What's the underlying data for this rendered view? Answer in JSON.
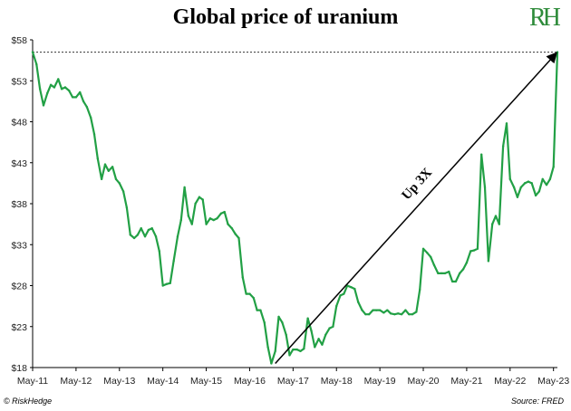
{
  "title": "Global price of uranium",
  "logo": {
    "text": "RH",
    "color": "#2e8b3a"
  },
  "footer": {
    "left": "© RiskHedge",
    "right": "Source: FRED"
  },
  "colors": {
    "line": "#22a045",
    "arrow": "#000000",
    "reference": "#333333"
  },
  "chart_data": {
    "type": "line",
    "title": "Global price of uranium",
    "xlabel": "",
    "ylabel": "",
    "yticks": [
      "$18",
      "$23",
      "$28",
      "$33",
      "$38",
      "$43",
      "$48",
      "$53",
      "$58"
    ],
    "ylim": [
      18,
      58
    ],
    "xticks": [
      "May-11",
      "May-12",
      "May-13",
      "May-14",
      "May-15",
      "May-16",
      "May-17",
      "May-18",
      "May-19",
      "May-20",
      "May-21",
      "May-22",
      "May-23"
    ],
    "grid": false,
    "annotation": {
      "text": "Up 3X",
      "from": [
        2016.92,
        18.5
      ],
      "to": [
        2023.42,
        56.5
      ]
    },
    "reference_line_value": 56.5,
    "series": [
      {
        "values": [
          [
            2011.33,
            56.5
          ],
          [
            2011.42,
            55.0
          ],
          [
            2011.5,
            52.0
          ],
          [
            2011.58,
            50.0
          ],
          [
            2011.67,
            51.5
          ],
          [
            2011.75,
            52.5
          ],
          [
            2011.83,
            52.2
          ],
          [
            2011.92,
            53.2
          ],
          [
            2012.0,
            52.0
          ],
          [
            2012.08,
            52.2
          ],
          [
            2012.17,
            51.8
          ],
          [
            2012.25,
            51.0
          ],
          [
            2012.33,
            51.0
          ],
          [
            2012.42,
            51.6
          ],
          [
            2012.5,
            50.5
          ],
          [
            2012.58,
            49.8
          ],
          [
            2012.67,
            48.5
          ],
          [
            2012.75,
            46.5
          ],
          [
            2012.83,
            43.5
          ],
          [
            2012.92,
            41.0
          ],
          [
            2013.0,
            42.8
          ],
          [
            2013.08,
            42.0
          ],
          [
            2013.17,
            42.5
          ],
          [
            2013.25,
            41.0
          ],
          [
            2013.33,
            40.5
          ],
          [
            2013.42,
            39.5
          ],
          [
            2013.5,
            37.5
          ],
          [
            2013.58,
            34.2
          ],
          [
            2013.67,
            33.8
          ],
          [
            2013.75,
            34.2
          ],
          [
            2013.83,
            35.0
          ],
          [
            2013.92,
            34.0
          ],
          [
            2014.0,
            34.8
          ],
          [
            2014.08,
            35.0
          ],
          [
            2014.17,
            34.0
          ],
          [
            2014.25,
            32.2
          ],
          [
            2014.33,
            28.0
          ],
          [
            2014.42,
            28.2
          ],
          [
            2014.5,
            28.3
          ],
          [
            2014.58,
            31.0
          ],
          [
            2014.67,
            34.0
          ],
          [
            2014.75,
            36.0
          ],
          [
            2014.83,
            40.0
          ],
          [
            2014.92,
            36.5
          ],
          [
            2015.0,
            35.5
          ],
          [
            2015.08,
            38.0
          ],
          [
            2015.17,
            38.8
          ],
          [
            2015.25,
            38.5
          ],
          [
            2015.33,
            35.5
          ],
          [
            2015.42,
            36.2
          ],
          [
            2015.5,
            36.0
          ],
          [
            2015.58,
            36.2
          ],
          [
            2015.67,
            36.8
          ],
          [
            2015.75,
            37.0
          ],
          [
            2015.83,
            35.5
          ],
          [
            2015.92,
            35.0
          ],
          [
            2016.0,
            34.3
          ],
          [
            2016.08,
            33.8
          ],
          [
            2016.17,
            29.0
          ],
          [
            2016.25,
            27.0
          ],
          [
            2016.33,
            27.0
          ],
          [
            2016.42,
            26.5
          ],
          [
            2016.5,
            25.0
          ],
          [
            2016.58,
            25.0
          ],
          [
            2016.67,
            23.5
          ],
          [
            2016.75,
            20.5
          ],
          [
            2016.83,
            18.5
          ],
          [
            2016.92,
            20.0
          ],
          [
            2017.0,
            24.2
          ],
          [
            2017.08,
            23.5
          ],
          [
            2017.17,
            22.0
          ],
          [
            2017.25,
            19.5
          ],
          [
            2017.33,
            20.2
          ],
          [
            2017.42,
            20.2
          ],
          [
            2017.5,
            20.0
          ],
          [
            2017.58,
            20.3
          ],
          [
            2017.67,
            24.0
          ],
          [
            2017.75,
            22.5
          ],
          [
            2017.83,
            20.5
          ],
          [
            2017.92,
            21.5
          ],
          [
            2018.0,
            20.8
          ],
          [
            2018.08,
            22.0
          ],
          [
            2018.17,
            22.8
          ],
          [
            2018.25,
            23.0
          ],
          [
            2018.33,
            25.5
          ],
          [
            2018.42,
            26.8
          ],
          [
            2018.5,
            27.0
          ],
          [
            2018.58,
            28.0
          ],
          [
            2018.67,
            27.8
          ],
          [
            2018.75,
            27.6
          ],
          [
            2018.83,
            26.0
          ],
          [
            2018.92,
            25.0
          ],
          [
            2019.0,
            24.5
          ],
          [
            2019.08,
            24.5
          ],
          [
            2019.17,
            25.0
          ],
          [
            2019.25,
            25.0
          ],
          [
            2019.33,
            25.0
          ],
          [
            2019.42,
            24.7
          ],
          [
            2019.5,
            25.0
          ],
          [
            2019.58,
            24.6
          ],
          [
            2019.67,
            24.5
          ],
          [
            2019.75,
            24.6
          ],
          [
            2019.83,
            24.5
          ],
          [
            2019.92,
            25.0
          ],
          [
            2020.0,
            24.5
          ],
          [
            2020.08,
            24.5
          ],
          [
            2020.17,
            24.8
          ],
          [
            2020.25,
            27.5
          ],
          [
            2020.33,
            32.5
          ],
          [
            2020.42,
            32.0
          ],
          [
            2020.5,
            31.5
          ],
          [
            2020.58,
            30.5
          ],
          [
            2020.67,
            29.5
          ],
          [
            2020.75,
            29.5
          ],
          [
            2020.83,
            29.5
          ],
          [
            2020.92,
            29.7
          ],
          [
            2021.0,
            28.5
          ],
          [
            2021.08,
            28.5
          ],
          [
            2021.17,
            29.5
          ],
          [
            2021.25,
            30.0
          ],
          [
            2021.33,
            30.8
          ],
          [
            2021.42,
            32.2
          ],
          [
            2021.5,
            32.3
          ],
          [
            2021.58,
            32.5
          ],
          [
            2021.67,
            44.0
          ],
          [
            2021.75,
            40.0
          ],
          [
            2021.83,
            31.0
          ],
          [
            2021.92,
            35.5
          ],
          [
            2022.0,
            36.5
          ],
          [
            2022.08,
            35.5
          ],
          [
            2022.17,
            45.0
          ],
          [
            2022.25,
            47.8
          ],
          [
            2022.33,
            41.0
          ],
          [
            2022.42,
            40.0
          ],
          [
            2022.5,
            38.8
          ],
          [
            2022.58,
            40.0
          ],
          [
            2022.67,
            40.5
          ],
          [
            2022.75,
            40.7
          ],
          [
            2022.83,
            40.5
          ],
          [
            2022.92,
            39.0
          ],
          [
            2023.0,
            39.5
          ],
          [
            2023.08,
            41.0
          ],
          [
            2023.17,
            40.3
          ],
          [
            2023.25,
            41.0
          ],
          [
            2023.33,
            42.5
          ],
          [
            2023.42,
            56.5
          ]
        ]
      }
    ]
  }
}
